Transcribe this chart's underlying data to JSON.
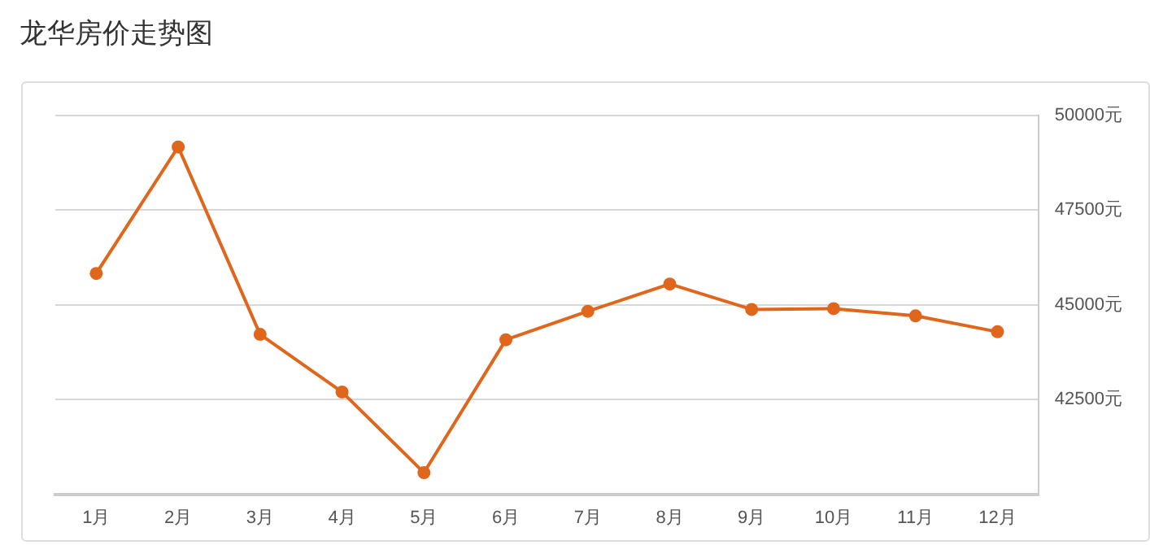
{
  "chart_data": {
    "type": "line",
    "title": "龙华房价走势图",
    "categories": [
      "1月",
      "2月",
      "3月",
      "4月",
      "5月",
      "6月",
      "7月",
      "8月",
      "9月",
      "10月",
      "11月",
      "12月"
    ],
    "series": [
      {
        "color": "#e0661c",
        "values": [
          45830,
          49170,
          44220,
          42700,
          40570,
          44080,
          44830,
          45550,
          44880,
          44900,
          44710,
          44290
        ]
      }
    ],
    "ylim": [
      40000,
      50000
    ],
    "yticks": [
      {
        "value": 42500,
        "label": "42500元"
      },
      {
        "value": 45000,
        "label": "45000元"
      },
      {
        "value": 47500,
        "label": "47500元"
      },
      {
        "value": 50000,
        "label": "50000元"
      }
    ],
    "grid": "y",
    "legend": false,
    "marker": "circle",
    "line_style": "solid"
  }
}
